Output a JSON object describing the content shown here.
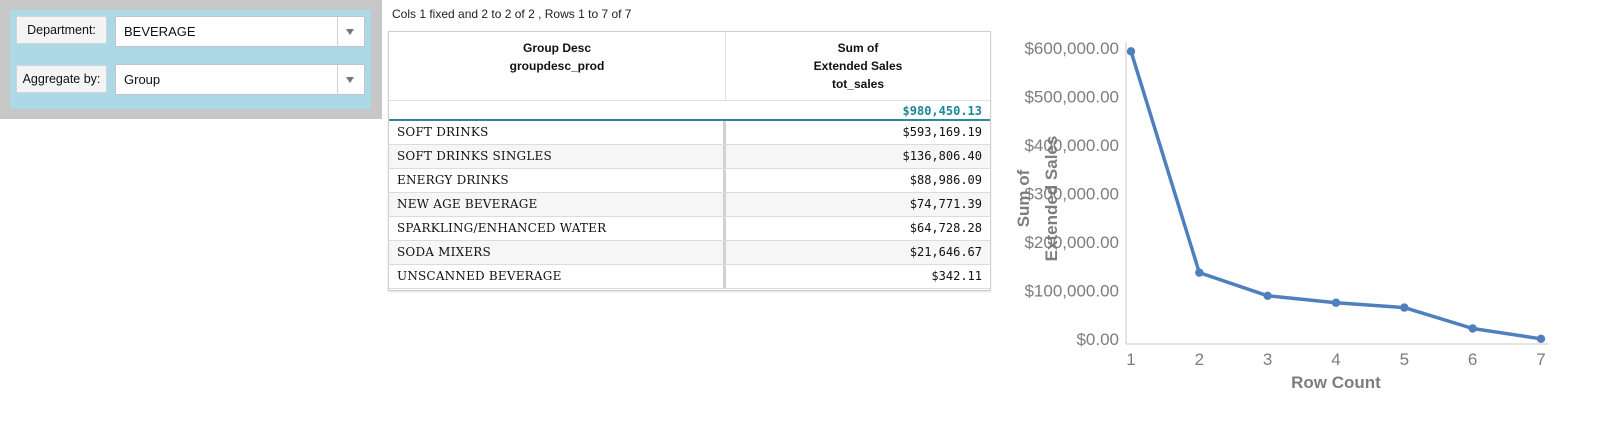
{
  "filters": {
    "department": {
      "label": "Department:",
      "value": "BEVERAGE"
    },
    "aggregate": {
      "label": "Aggregate by:",
      "value": "Group"
    }
  },
  "table": {
    "info": "Cols 1 fixed and 2 to 2 of 2 , Rows 1 to 7 of 7",
    "col1_header": [
      "Group Desc",
      "groupdesc_prod"
    ],
    "col2_header": [
      "Sum of",
      "Extended Sales",
      "tot_sales"
    ],
    "total": "$980,450.13",
    "rows": [
      {
        "group": "SOFT DRINKS",
        "sales": "$593,169.19"
      },
      {
        "group": "SOFT DRINKS SINGLES",
        "sales": "$136,806.40"
      },
      {
        "group": "ENERGY DRINKS",
        "sales": "$88,986.09"
      },
      {
        "group": "NEW AGE BEVERAGE",
        "sales": "$74,771.39"
      },
      {
        "group": "SPARKLING/ENHANCED WATER",
        "sales": "$64,728.28"
      },
      {
        "group": "SODA MIXERS",
        "sales": "$21,646.67"
      },
      {
        "group": "UNSCANNED BEVERAGE",
        "sales": "$342.11"
      }
    ]
  },
  "chart_data": {
    "type": "line",
    "x": [
      1,
      2,
      3,
      4,
      5,
      6,
      7
    ],
    "series": [
      {
        "values": [
          593169.19,
          136806.4,
          88986.09,
          74771.39,
          64728.28,
          21646.67,
          342.11
        ]
      }
    ],
    "xlabel": "Row Count",
    "ylabel": [
      "Sum of",
      "Extended Sales"
    ],
    "ylim": [
      0,
      600000
    ],
    "xlim": [
      1,
      7
    ],
    "y_ticks": [
      "$0.00",
      "$100,000.00",
      "$200,000.00",
      "$300,000.00",
      "$400,000.00",
      "$500,000.00",
      "$600,000.00"
    ],
    "x_ticks": [
      "1",
      "2",
      "3",
      "4",
      "5",
      "6",
      "7"
    ],
    "line_color": "#4f7fbf",
    "grid": false,
    "legend": "none"
  }
}
